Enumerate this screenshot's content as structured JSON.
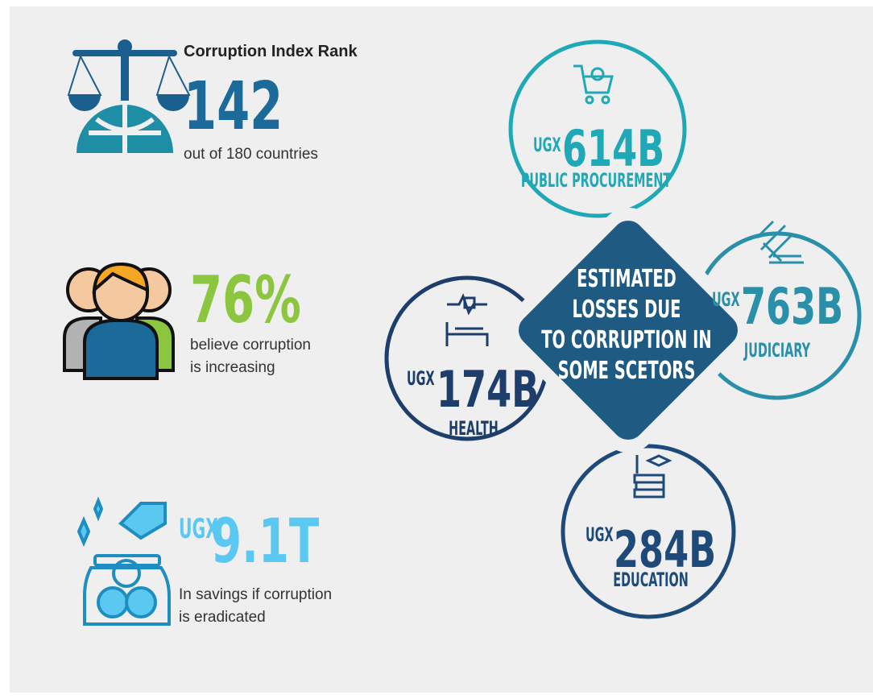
{
  "left": {
    "rank": {
      "title": "Corruption Index Rank",
      "value": "142",
      "caption": "out of 180 countries"
    },
    "belief": {
      "value": "76%",
      "caption": [
        "believe corruption",
        "is increasing"
      ]
    },
    "savings": {
      "currency": "UGX",
      "value": "9.1T",
      "caption": [
        "In savings if corruption",
        "is eradicated"
      ]
    }
  },
  "center": {
    "lines": [
      "ESTIMATED",
      "LOSSES DUE",
      "TO CORRUPTION IN",
      "SOME SCETORS"
    ]
  },
  "sectors": [
    {
      "currency": "UGX",
      "value": "614B",
      "label": "PUBLIC PROCUREMENT"
    },
    {
      "currency": "UGX",
      "value": "763B",
      "label": "JUDICIARY"
    },
    {
      "currency": "UGX",
      "value": "174B",
      "label": "HEALTH"
    },
    {
      "currency": "UGX",
      "value": "284B",
      "label": "EDUCATION"
    }
  ]
}
